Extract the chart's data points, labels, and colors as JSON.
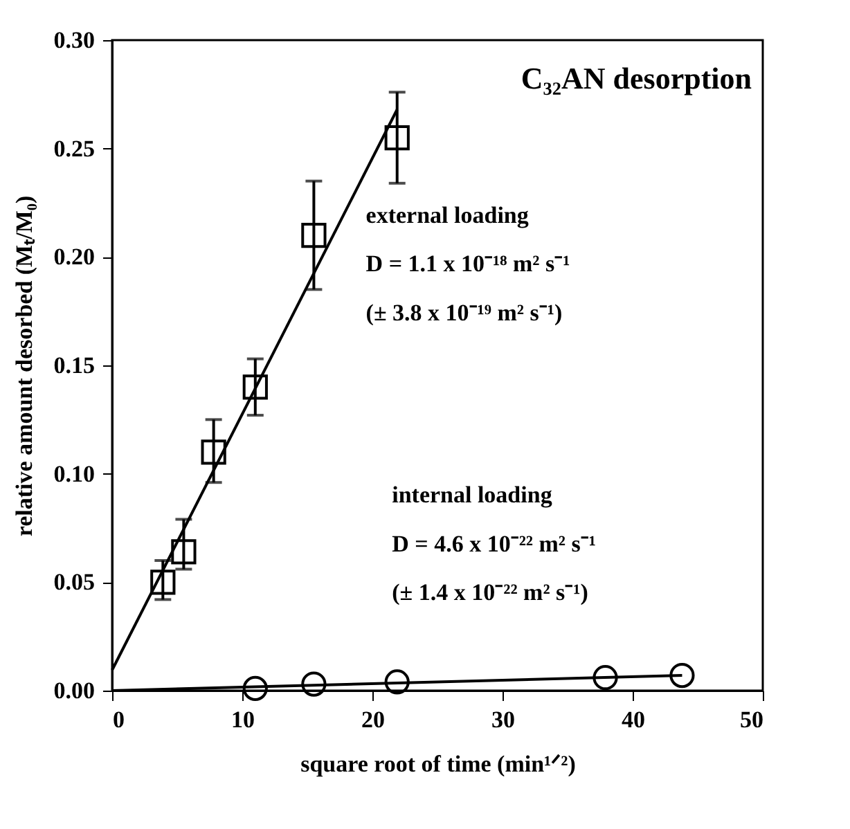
{
  "chart_data": {
    "type": "scatter",
    "xlabel": "square root of time (min¹ᐟ²)",
    "ylabel": "relative amount desorbed (Mₜ/M₀)",
    "xlim": [
      0,
      50
    ],
    "xticks": [
      0,
      10,
      20,
      30,
      40,
      50
    ],
    "ylim": [
      0,
      0.3
    ],
    "yticks": [
      {
        "value": 0,
        "label": "0.00"
      },
      {
        "value": 0.05,
        "label": "0.05"
      },
      {
        "value": 0.1,
        "label": "0.10"
      },
      {
        "value": 0.15,
        "label": "0.15"
      },
      {
        "value": 0.2,
        "label": "0.20"
      },
      {
        "value": 0.25,
        "label": "0.25"
      },
      {
        "value": 0.3,
        "label": "0.30"
      }
    ],
    "grid": false,
    "series": [
      {
        "marker": "square",
        "color": "#000000",
        "x": [
          3.9,
          5.5,
          7.8,
          11.0,
          15.5,
          21.9
        ],
        "values": [
          0.05,
          0.064,
          0.11,
          0.14,
          0.21,
          0.255
        ],
        "errors": [
          [
            0.042,
            0.06
          ],
          [
            0.056,
            0.079
          ],
          [
            0.096,
            0.125
          ],
          [
            0.127,
            0.153
          ],
          [
            0.185,
            0.235
          ],
          [
            0.234,
            0.276
          ]
        ]
      },
      {
        "type": "line",
        "color": "#000000",
        "x": [
          0,
          21.9
        ],
        "values": [
          0.0095,
          0.268
        ]
      },
      {
        "marker": "circle",
        "color": "#000000",
        "x": [
          11.0,
          15.5,
          21.9,
          37.9,
          43.8
        ],
        "values": [
          0.001,
          0.003,
          0.004,
          0.006,
          0.007
        ]
      },
      {
        "type": "line",
        "color": "#000000",
        "x": [
          0,
          43.8
        ],
        "values": [
          0.0,
          0.007
        ]
      }
    ],
    "annotations": [
      "C₃₂AN desorption",
      "external loading",
      "D = 1.1 x 10⁻¹⁸ m² s⁻¹",
      "(± 3.8 x 10⁻¹⁹ m² s⁻¹)",
      "internal loading",
      "D = 4.6 x 10⁻²² m² s⁻¹",
      "(± 1.4 x 10⁻²² m² s⁻¹)"
    ]
  }
}
